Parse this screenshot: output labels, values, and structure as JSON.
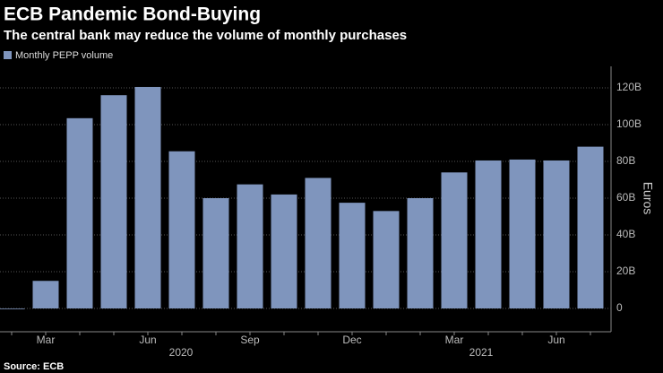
{
  "chart_data": {
    "type": "bar",
    "title": "ECB Pandemic Bond-Buying",
    "subtitle": "The central bank may reduce the volume of monthly purchases",
    "series": [
      {
        "name": "Monthly PEPP volume",
        "color": "#7f95bd",
        "values": [
          0,
          15,
          103.5,
          116,
          120.5,
          85.5,
          60,
          67.5,
          62,
          71,
          57.5,
          53,
          60,
          74,
          80.5,
          81,
          80.5,
          88
        ]
      }
    ],
    "categories": [
      null,
      "Mar",
      null,
      null,
      "Jun",
      null,
      null,
      "Sep",
      null,
      null,
      "Dec",
      null,
      null,
      "Mar",
      null,
      null,
      "Jun",
      null
    ],
    "year_labels": [
      "2020",
      "2021"
    ],
    "y_label": "Euros",
    "ylim": [
      0,
      130
    ],
    "yticks": [
      {
        "value": 0,
        "label": "0"
      },
      {
        "value": 20,
        "label": "20B"
      },
      {
        "value": 40,
        "label": "40B"
      },
      {
        "value": 60,
        "label": "60B"
      },
      {
        "value": 80,
        "label": "80B"
      },
      {
        "value": 100,
        "label": "100B"
      },
      {
        "value": 120,
        "label": "120B"
      }
    ],
    "grid": true,
    "source": "Source: ECB"
  }
}
